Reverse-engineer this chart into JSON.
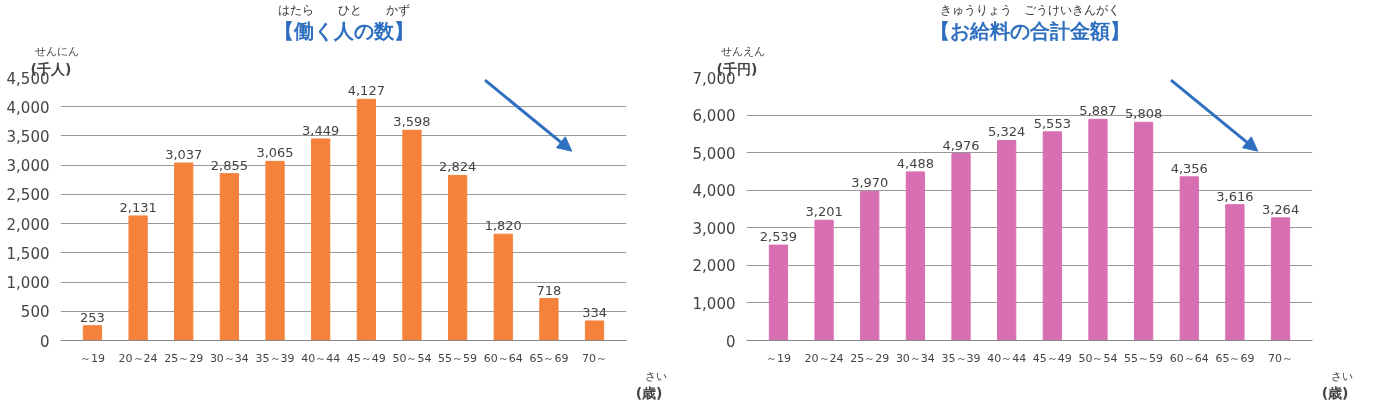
{
  "chart_data": [
    {
      "type": "bar",
      "title": "【働く人の数】",
      "ylabel": "(千人)",
      "xlabel": "(歳)",
      "annotations": [
        "はたら　　ひと　　かず",
        "せんにん",
        "さい"
      ],
      "categories": [
        "～19",
        "20～24",
        "25～29",
        "30～34",
        "35～39",
        "40～44",
        "45～49",
        "50～54",
        "55～59",
        "60～64",
        "65～69",
        "70～"
      ],
      "series": [
        {
          "color": "#f4823a",
          "values": [
            253,
            2131,
            3037,
            2855,
            3065,
            3449,
            4127,
            3598,
            2824,
            1820,
            718,
            334
          ]
        }
      ],
      "value_labels": [
        "253",
        "2,131",
        "3,037",
        "2,855",
        "3,065",
        "3,449",
        "4,127",
        "3,598",
        "2,824",
        "1,820",
        "718",
        "334"
      ],
      "ylim": [
        0,
        4500
      ],
      "yticks": [
        0,
        {
          "value": 500,
          "label": "500"
        },
        {
          "value": 1000,
          "label": "1,000"
        },
        {
          "value": 1500,
          "label": "1,500"
        },
        {
          "value": 2000,
          "label": "2,000"
        },
        {
          "value": 2500,
          "label": "2,500"
        },
        {
          "value": 3000,
          "label": "3,000"
        },
        {
          "value": 3500,
          "label": "3,500"
        },
        {
          "value": 4000,
          "label": "4,000"
        },
        {
          "value": 4500,
          "label": "4,500"
        }
      ],
      "grid": "y"
    },
    {
      "type": "bar",
      "title": "【お給料の合計金額】",
      "ylabel": "(千円)",
      "xlabel": "(歳)",
      "annotations": [
        "きゅうりょう　ごうけいきんがく",
        "せんえん",
        "さい"
      ],
      "categories": [
        "～19",
        "20～24",
        "25～29",
        "30～34",
        "35～39",
        "40～44",
        "45～49",
        "50～54",
        "55～59",
        "60～64",
        "65～69",
        "70～"
      ],
      "series": [
        {
          "color": "#d86fb2",
          "values": [
            2539,
            3201,
            3970,
            4488,
            4976,
            5324,
            5553,
            5887,
            5808,
            4356,
            3616,
            3264
          ]
        }
      ],
      "value_labels": [
        "2,539",
        "3,201",
        "3,970",
        "4,488",
        "4,976",
        "5,324",
        "5,553",
        "5,887",
        "5,808",
        "4,356",
        "3,616",
        "3,264"
      ],
      "ylim": [
        0,
        7000
      ],
      "yticks": [
        0,
        {
          "value": 1000,
          "label": "1,000"
        },
        {
          "value": 2000,
          "label": "2,000"
        },
        {
          "value": 3000,
          "label": "3,000"
        },
        {
          "value": 4000,
          "label": "4,000"
        },
        {
          "value": 5000,
          "label": "5,000"
        },
        {
          "value": 6000,
          "label": "6,000"
        },
        {
          "value": 7000,
          "label": "7,000"
        }
      ],
      "grid": "y"
    }
  ]
}
